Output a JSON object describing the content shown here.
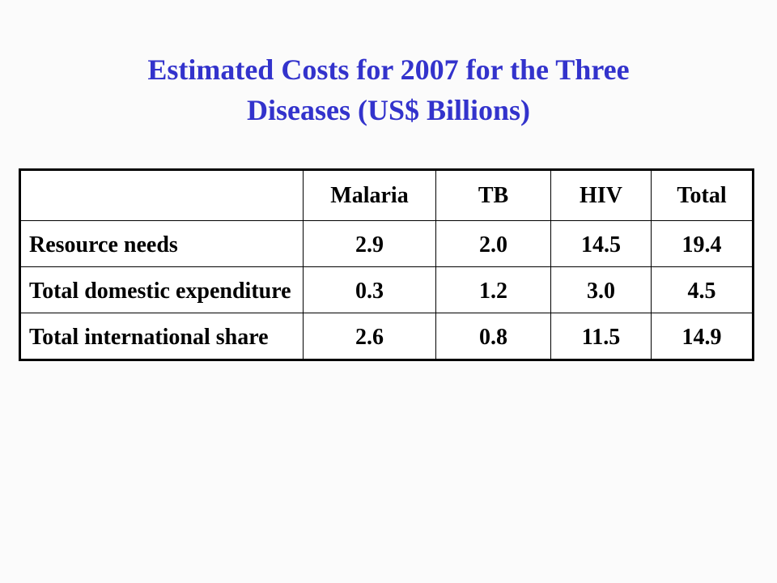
{
  "title": {
    "line1": "Estimated Costs for 2007 for the Three",
    "line2": "Diseases (US$ Billions)"
  },
  "table": {
    "headers": [
      "",
      "Malaria",
      "TB",
      "HIV",
      "Total"
    ],
    "rows": [
      {
        "label": "Resource needs",
        "values": [
          "2.9",
          "2.0",
          "14.5",
          "19.4"
        ]
      },
      {
        "label": "Total domestic expenditure",
        "values": [
          "0.3",
          "1.2",
          "3.0",
          "4.5"
        ]
      },
      {
        "label": "Total international share",
        "values": [
          "2.6",
          "0.8",
          "11.5",
          "14.9"
        ]
      }
    ]
  },
  "colors": {
    "title": "#3333cc",
    "background": "#fbfbfb",
    "table_border": "#000000"
  }
}
